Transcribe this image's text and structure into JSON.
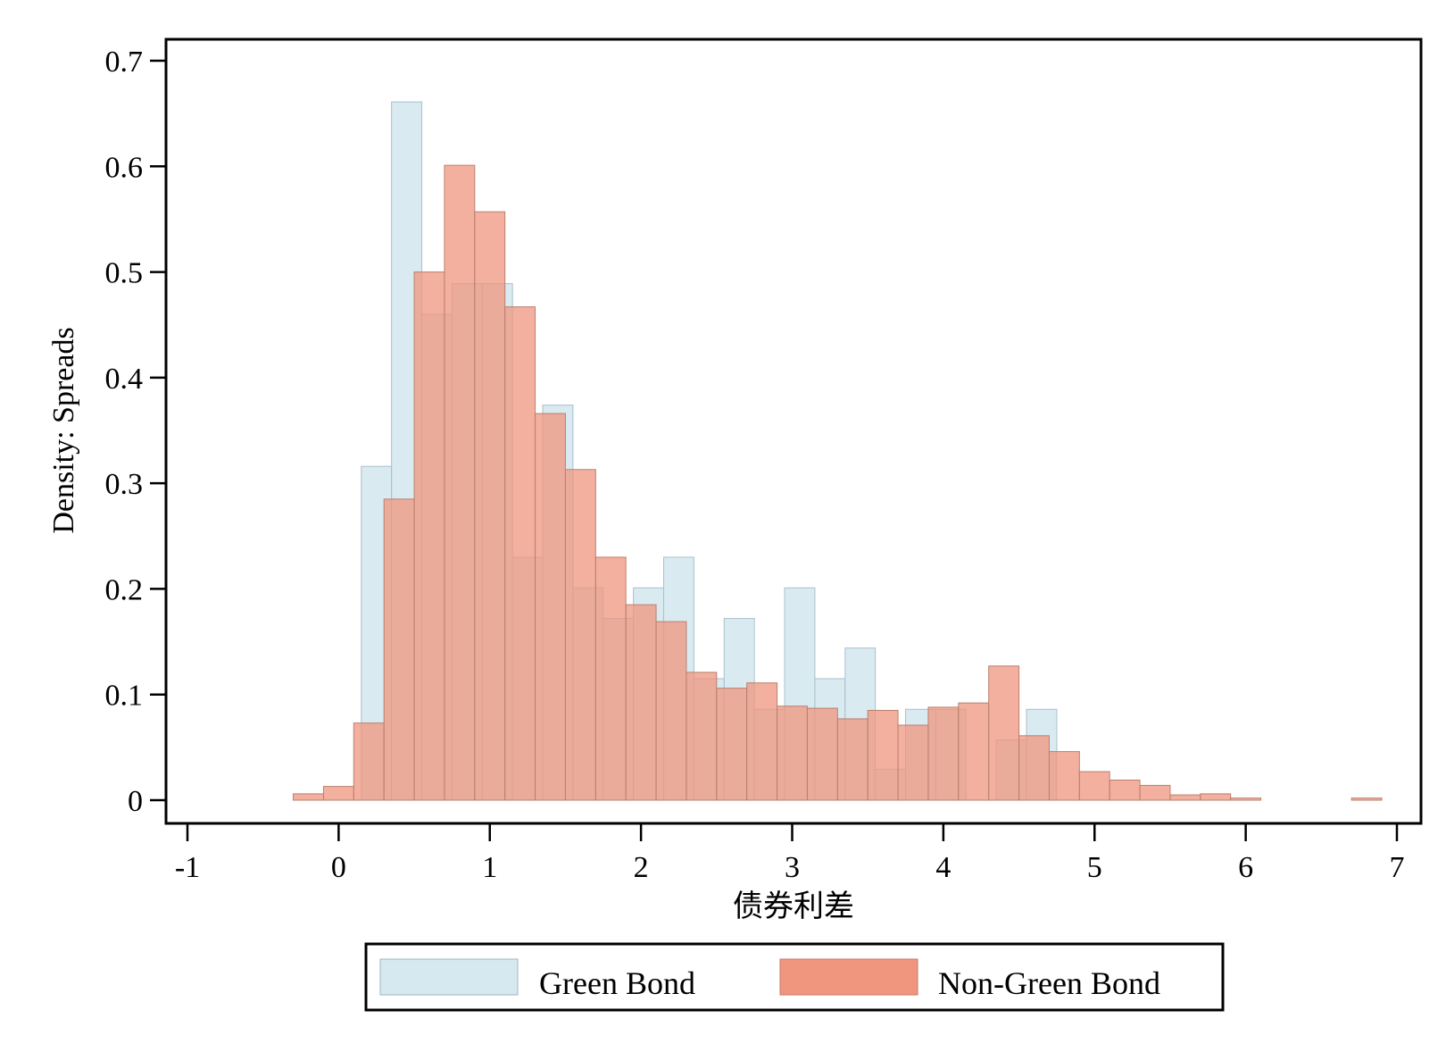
{
  "chart_data": {
    "type": "bar",
    "xlabel": "债券利差",
    "ylabel": "Density: Spreads",
    "xlim": [
      -1,
      7
    ],
    "ylim": [
      0,
      0.7
    ],
    "xticks": [
      "-1",
      "0",
      "1",
      "2",
      "3",
      "4",
      "5",
      "6",
      "7"
    ],
    "yticks": [
      "0",
      "0.1",
      "0.2",
      "0.3",
      "0.4",
      "0.5",
      "0.6",
      "0.7"
    ],
    "grid": false,
    "legend_position": "bottom",
    "series": [
      {
        "name": "Green Bond",
        "color": "#d6e8f0",
        "bin_width": 0.2,
        "bins": [
          {
            "x0": 0.15,
            "value": 0.316
          },
          {
            "x0": 0.35,
            "value": 0.661
          },
          {
            "x0": 0.55,
            "value": 0.46
          },
          {
            "x0": 0.75,
            "value": 0.489
          },
          {
            "x0": 0.95,
            "value": 0.489
          },
          {
            "x0": 1.15,
            "value": 0.23
          },
          {
            "x0": 1.35,
            "value": 0.374
          },
          {
            "x0": 1.55,
            "value": 0.201
          },
          {
            "x0": 1.75,
            "value": 0.172
          },
          {
            "x0": 1.95,
            "value": 0.201
          },
          {
            "x0": 2.15,
            "value": 0.23
          },
          {
            "x0": 2.35,
            "value": 0.115
          },
          {
            "x0": 2.55,
            "value": 0.172
          },
          {
            "x0": 2.75,
            "value": 0.086
          },
          {
            "x0": 2.95,
            "value": 0.201
          },
          {
            "x0": 3.15,
            "value": 0.115
          },
          {
            "x0": 3.35,
            "value": 0.144
          },
          {
            "x0": 3.55,
            "value": 0.029
          },
          {
            "x0": 3.75,
            "value": 0.086
          },
          {
            "x0": 3.95,
            "value": 0.086
          },
          {
            "x0": 4.15,
            "value": 0.0
          },
          {
            "x0": 4.35,
            "value": 0.057
          },
          {
            "x0": 4.55,
            "value": 0.086
          }
        ]
      },
      {
        "name": "Non-Green Bond",
        "color": "#f0967e",
        "bin_width": 0.2,
        "bins": [
          {
            "x0": -0.3,
            "value": 0.006
          },
          {
            "x0": -0.1,
            "value": 0.013
          },
          {
            "x0": 0.1,
            "value": 0.073
          },
          {
            "x0": 0.3,
            "value": 0.285
          },
          {
            "x0": 0.5,
            "value": 0.5
          },
          {
            "x0": 0.7,
            "value": 0.601
          },
          {
            "x0": 0.9,
            "value": 0.557
          },
          {
            "x0": 1.1,
            "value": 0.467
          },
          {
            "x0": 1.3,
            "value": 0.366
          },
          {
            "x0": 1.5,
            "value": 0.313
          },
          {
            "x0": 1.7,
            "value": 0.23
          },
          {
            "x0": 1.9,
            "value": 0.185
          },
          {
            "x0": 2.1,
            "value": 0.169
          },
          {
            "x0": 2.3,
            "value": 0.121
          },
          {
            "x0": 2.5,
            "value": 0.106
          },
          {
            "x0": 2.7,
            "value": 0.111
          },
          {
            "x0": 2.9,
            "value": 0.089
          },
          {
            "x0": 3.1,
            "value": 0.087
          },
          {
            "x0": 3.3,
            "value": 0.077
          },
          {
            "x0": 3.5,
            "value": 0.085
          },
          {
            "x0": 3.7,
            "value": 0.071
          },
          {
            "x0": 3.9,
            "value": 0.088
          },
          {
            "x0": 4.1,
            "value": 0.092
          },
          {
            "x0": 4.3,
            "value": 0.127
          },
          {
            "x0": 4.5,
            "value": 0.061
          },
          {
            "x0": 4.7,
            "value": 0.046
          },
          {
            "x0": 4.9,
            "value": 0.027
          },
          {
            "x0": 5.1,
            "value": 0.019
          },
          {
            "x0": 5.3,
            "value": 0.014
          },
          {
            "x0": 5.5,
            "value": 0.005
          },
          {
            "x0": 5.7,
            "value": 0.006
          },
          {
            "x0": 5.9,
            "value": 0.002
          },
          {
            "x0": 6.7,
            "value": 0.002
          }
        ]
      }
    ]
  }
}
